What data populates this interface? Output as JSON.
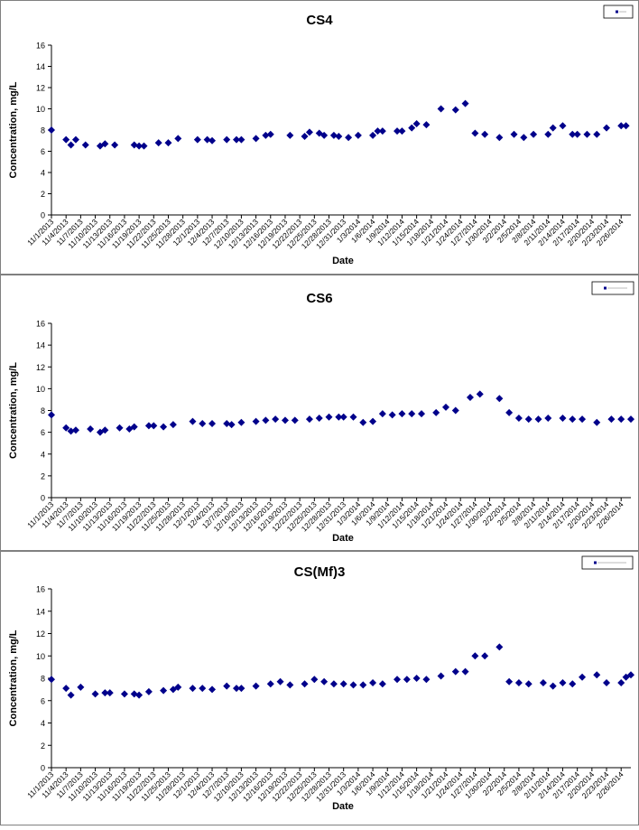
{
  "chart_data": [
    {
      "type": "scatter",
      "title": "CS4",
      "xlabel": "Date",
      "ylabel": "Concentration, mg/L",
      "ylim": [
        0,
        16
      ],
      "yticks": [
        0,
        2,
        4,
        6,
        8,
        10,
        12,
        14,
        16
      ],
      "grid": false,
      "legend": "top-right",
      "color": "#00008B",
      "xlim": [
        "11/1/2013",
        "2/28/2014"
      ],
      "xticks": [
        "11/1/2013",
        "11/4/2013",
        "11/7/2013",
        "11/10/2013",
        "11/13/2013",
        "11/16/2013",
        "11/19/2013",
        "11/22/2013",
        "11/25/2013",
        "11/28/2013",
        "12/1/2013",
        "12/4/2013",
        "12/7/2013",
        "12/10/2013",
        "12/13/2013",
        "12/16/2013",
        "12/19/2013",
        "12/22/2013",
        "12/25/2013",
        "12/28/2013",
        "12/31/2013",
        "1/3/2014",
        "1/6/2014",
        "1/9/2014",
        "1/12/2014",
        "1/15/2014",
        "1/18/2014",
        "1/21/2014",
        "1/24/2014",
        "1/27/2014",
        "1/30/2014",
        "2/2/2014",
        "2/5/2014",
        "2/8/2014",
        "2/11/2014",
        "2/14/2014",
        "2/17/2014",
        "2/20/2014",
        "2/23/2014",
        "2/26/2014"
      ],
      "series": [
        {
          "x": [
            "11/1/2013",
            "11/4/2013",
            "11/5/2013",
            "11/6/2013",
            "11/8/2013",
            "11/11/2013",
            "11/12/2013",
            "11/14/2013",
            "11/18/2013",
            "11/19/2013",
            "11/20/2013",
            "11/23/2013",
            "11/25/2013",
            "11/27/2013",
            "12/1/2013",
            "12/3/2013",
            "12/4/2013",
            "12/7/2013",
            "12/9/2013",
            "12/10/2013",
            "12/13/2013",
            "12/15/2013",
            "12/16/2013",
            "12/20/2013",
            "12/23/2013",
            "12/24/2013",
            "12/26/2013",
            "12/27/2013",
            "12/29/2013",
            "12/30/2013",
            "1/1/2014",
            "1/3/2014",
            "1/6/2014",
            "1/7/2014",
            "1/8/2014",
            "1/11/2014",
            "1/12/2014",
            "1/14/2014",
            "1/15/2014",
            "1/17/2014",
            "1/20/2014",
            "1/23/2014",
            "1/25/2014",
            "1/27/2014",
            "1/29/2014",
            "2/1/2014",
            "2/4/2014",
            "2/6/2014",
            "2/8/2014",
            "2/11/2014",
            "2/12/2014",
            "2/14/2014",
            "2/16/2014",
            "2/17/2014",
            "2/19/2014",
            "2/21/2014",
            "2/23/2014",
            "2/26/2014",
            "2/27/2014"
          ],
          "y": [
            8.0,
            7.1,
            6.6,
            7.1,
            6.6,
            6.5,
            6.7,
            6.6,
            6.6,
            6.5,
            6.5,
            6.8,
            6.8,
            7.2,
            7.1,
            7.1,
            7.0,
            7.1,
            7.1,
            7.1,
            7.2,
            7.5,
            7.6,
            7.5,
            7.4,
            7.8,
            7.7,
            7.5,
            7.5,
            7.4,
            7.3,
            7.5,
            7.5,
            7.9,
            7.9,
            7.9,
            7.9,
            8.2,
            8.6,
            8.5,
            10.0,
            9.9,
            10.5,
            7.7,
            7.6,
            7.3,
            7.6,
            7.3,
            7.6,
            7.6,
            8.2,
            8.4,
            7.6,
            7.6,
            7.6,
            7.6,
            8.2,
            8.4,
            8.4
          ]
        }
      ]
    },
    {
      "type": "scatter",
      "title": "CS6",
      "xlabel": "Date",
      "ylabel": "Concentration, mg/L",
      "ylim": [
        0,
        16
      ],
      "yticks": [
        0,
        2,
        4,
        6,
        8,
        10,
        12,
        14,
        16
      ],
      "grid": false,
      "legend": "top-right",
      "color": "#00008B",
      "xlim": [
        "11/1/2013",
        "2/28/2014"
      ],
      "xticks": [
        "11/1/2013",
        "11/4/2013",
        "11/7/2013",
        "11/10/2013",
        "11/13/2013",
        "11/16/2013",
        "11/19/2013",
        "11/22/2013",
        "11/25/2013",
        "11/28/2013",
        "12/1/2013",
        "12/4/2013",
        "12/7/2013",
        "12/10/2013",
        "12/13/2013",
        "12/16/2013",
        "12/19/2013",
        "12/22/2013",
        "12/25/2013",
        "12/28/2013",
        "12/31/2013",
        "1/3/2014",
        "1/6/2014",
        "1/9/2014",
        "1/12/2014",
        "1/15/2014",
        "1/18/2014",
        "1/21/2014",
        "1/24/2014",
        "1/27/2014",
        "1/30/2014",
        "2/2/2014",
        "2/5/2014",
        "2/8/2014",
        "2/11/2014",
        "2/14/2014",
        "2/17/2014",
        "2/20/2014",
        "2/23/2014",
        "2/26/2014"
      ],
      "series": [
        {
          "x": [
            "11/1/2013",
            "11/4/2013",
            "11/5/2013",
            "11/6/2013",
            "11/9/2013",
            "11/11/2013",
            "11/12/2013",
            "11/15/2013",
            "11/17/2013",
            "11/18/2013",
            "11/21/2013",
            "11/22/2013",
            "11/24/2013",
            "11/26/2013",
            "11/30/2013",
            "12/2/2013",
            "12/4/2013",
            "12/7/2013",
            "12/8/2013",
            "12/10/2013",
            "12/13/2013",
            "12/15/2013",
            "12/17/2013",
            "12/19/2013",
            "12/21/2013",
            "12/24/2013",
            "12/26/2013",
            "12/28/2013",
            "12/30/2013",
            "12/31/2013",
            "1/2/2014",
            "1/4/2014",
            "1/6/2014",
            "1/8/2014",
            "1/10/2014",
            "1/12/2014",
            "1/14/2014",
            "1/16/2014",
            "1/19/2014",
            "1/21/2014",
            "1/23/2014",
            "1/26/2014",
            "1/28/2014",
            "2/1/2014",
            "2/3/2014",
            "2/5/2014",
            "2/7/2014",
            "2/9/2014",
            "2/11/2014",
            "2/14/2014",
            "2/16/2014",
            "2/18/2014",
            "2/21/2014",
            "2/24/2014",
            "2/26/2014",
            "2/28/2014"
          ],
          "y": [
            7.6,
            6.4,
            6.1,
            6.2,
            6.3,
            6.0,
            6.2,
            6.4,
            6.3,
            6.5,
            6.6,
            6.6,
            6.5,
            6.7,
            7.0,
            6.8,
            6.8,
            6.8,
            6.7,
            6.9,
            7.0,
            7.1,
            7.2,
            7.1,
            7.1,
            7.2,
            7.3,
            7.4,
            7.4,
            7.4,
            7.4,
            6.9,
            7.0,
            7.7,
            7.6,
            7.7,
            7.7,
            7.7,
            7.8,
            8.3,
            8.0,
            9.2,
            9.5,
            9.1,
            7.8,
            7.3,
            7.2,
            7.2,
            7.3,
            7.3,
            7.2,
            7.2,
            6.9,
            7.2,
            7.2,
            7.2
          ]
        }
      ]
    },
    {
      "type": "scatter",
      "title": "CS(Mf)3",
      "xlabel": "Date",
      "ylabel": "Concentration, mg/L",
      "ylim": [
        0,
        16
      ],
      "yticks": [
        0,
        2,
        4,
        6,
        8,
        10,
        12,
        14,
        16
      ],
      "grid": false,
      "legend": "top-right",
      "color": "#00008B",
      "xlim": [
        "11/1/2013",
        "2/28/2014"
      ],
      "xticks": [
        "11/1/2013",
        "11/4/2013",
        "11/7/2013",
        "11/10/2013",
        "11/13/2013",
        "11/16/2013",
        "11/19/2013",
        "11/22/2013",
        "11/25/2013",
        "11/28/2013",
        "12/1/2013",
        "12/4/2013",
        "12/7/2013",
        "12/10/2013",
        "12/13/2013",
        "12/16/2013",
        "12/19/2013",
        "12/22/2013",
        "12/25/2013",
        "12/28/2013",
        "12/31/2013",
        "1/3/2014",
        "1/6/2014",
        "1/9/2014",
        "1/12/2014",
        "1/15/2014",
        "1/18/2014",
        "1/21/2014",
        "1/24/2014",
        "1/27/2014",
        "1/30/2014",
        "2/2/2014",
        "2/5/2014",
        "2/8/2014",
        "2/11/2014",
        "2/14/2014",
        "2/17/2014",
        "2/20/2014",
        "2/23/2014",
        "2/26/2014"
      ],
      "series": [
        {
          "x": [
            "11/1/2013",
            "11/4/2013",
            "11/5/2013",
            "11/7/2013",
            "11/10/2013",
            "11/12/2013",
            "11/13/2013",
            "11/16/2013",
            "11/18/2013",
            "11/19/2013",
            "11/21/2013",
            "11/24/2013",
            "11/26/2013",
            "11/27/2013",
            "11/30/2013",
            "12/2/2013",
            "12/4/2013",
            "12/7/2013",
            "12/9/2013",
            "12/10/2013",
            "12/13/2013",
            "12/16/2013",
            "12/18/2013",
            "12/20/2013",
            "12/23/2013",
            "12/25/2013",
            "12/27/2013",
            "12/29/2013",
            "12/31/2013",
            "1/2/2014",
            "1/4/2014",
            "1/6/2014",
            "1/8/2014",
            "1/11/2014",
            "1/13/2014",
            "1/15/2014",
            "1/17/2014",
            "1/20/2014",
            "1/23/2014",
            "1/25/2014",
            "1/27/2014",
            "1/29/2014",
            "2/1/2014",
            "2/3/2014",
            "2/5/2014",
            "2/7/2014",
            "2/10/2014",
            "2/12/2014",
            "2/14/2014",
            "2/16/2014",
            "2/18/2014",
            "2/21/2014",
            "2/23/2014",
            "2/26/2014",
            "2/27/2014",
            "2/28/2014"
          ],
          "y": [
            7.9,
            7.1,
            6.5,
            7.2,
            6.6,
            6.7,
            6.7,
            6.6,
            6.6,
            6.5,
            6.8,
            6.9,
            7.0,
            7.2,
            7.1,
            7.1,
            7.0,
            7.3,
            7.1,
            7.1,
            7.3,
            7.5,
            7.7,
            7.4,
            7.5,
            7.9,
            7.7,
            7.5,
            7.5,
            7.4,
            7.4,
            7.6,
            7.5,
            7.9,
            7.9,
            8.0,
            7.9,
            8.2,
            8.6,
            8.6,
            10.0,
            10.0,
            10.8,
            7.7,
            7.6,
            7.5,
            7.6,
            7.3,
            7.6,
            7.5,
            8.1,
            8.3,
            7.6,
            7.6,
            8.1,
            8.3
          ]
        }
      ]
    }
  ]
}
